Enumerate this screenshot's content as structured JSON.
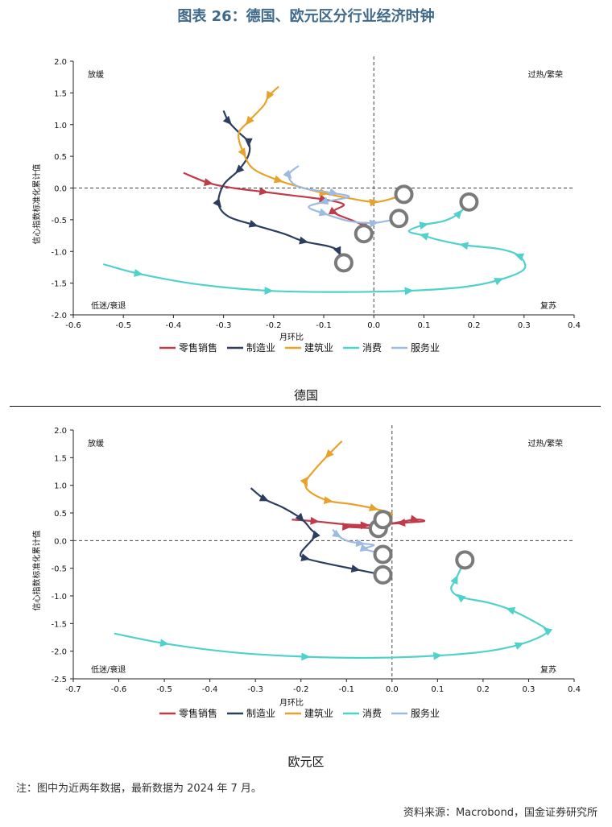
{
  "figure": {
    "title": "图表 26：德国、欧元区分行业经济时钟",
    "note": "注：图中为近两年数据，最新数据为 2024 年 7 月。",
    "source": "资料来源：Macrobond，国金证券研究所"
  },
  "quadrant_labels": {
    "top_left": "放缓",
    "top_right": "过热/繁荣",
    "bottom_left": "低迷/衰退",
    "bottom_right": "复苏"
  },
  "colors": {
    "零售销售": "#c03b4a",
    "制造业": "#2c3e5f",
    "建筑业": "#e8a22b",
    "消费": "#4fd1cc",
    "服务业": "#9dbbe0",
    "endpoint": "#7a7a7a"
  },
  "chart_data": [
    {
      "type": "scatter",
      "caption": "德国",
      "xlabel": "月环比",
      "ylabel": "信心指数标准化累计值",
      "xlim": [
        -0.6,
        0.4
      ],
      "ylim": [
        -2.0,
        2.0
      ],
      "xticks": [
        "-0.6",
        "-0.5",
        "-0.4",
        "-0.3",
        "-0.2",
        "-0.1",
        "0.0",
        "0.1",
        "0.2",
        "0.3",
        "0.4"
      ],
      "yticks": [
        "-2.0",
        "-1.5",
        "-1.0",
        "-0.5",
        "0.0",
        "0.5",
        "1.0",
        "1.5",
        "2.0"
      ],
      "grid": false,
      "legend": "bottom",
      "series": [
        {
          "name": "零售销售",
          "points": [
            [
              -0.38,
              0.24
            ],
            [
              -0.33,
              0.08
            ],
            [
              -0.28,
              0.0
            ],
            [
              -0.22,
              -0.06
            ],
            [
              -0.16,
              -0.12
            ],
            [
              -0.1,
              -0.18
            ],
            [
              -0.06,
              -0.26
            ],
            [
              -0.08,
              -0.38
            ],
            [
              -0.04,
              -0.52
            ],
            [
              -0.02,
              -0.6
            ],
            [
              -0.02,
              -0.72
            ]
          ]
        },
        {
          "name": "制造业",
          "points": [
            [
              -0.3,
              1.22
            ],
            [
              -0.29,
              1.05
            ],
            [
              -0.27,
              0.88
            ],
            [
              -0.25,
              0.72
            ],
            [
              -0.25,
              0.52
            ],
            [
              -0.27,
              0.28
            ],
            [
              -0.3,
              0.05
            ],
            [
              -0.31,
              -0.25
            ],
            [
              -0.29,
              -0.45
            ],
            [
              -0.24,
              -0.58
            ],
            [
              -0.18,
              -0.72
            ],
            [
              -0.14,
              -0.84
            ],
            [
              -0.09,
              -0.92
            ],
            [
              -0.07,
              -1.0
            ],
            [
              -0.06,
              -1.18
            ]
          ]
        },
        {
          "name": "建筑业",
          "points": [
            [
              -0.19,
              1.6
            ],
            [
              -0.21,
              1.45
            ],
            [
              -0.22,
              1.3
            ],
            [
              -0.25,
              1.05
            ],
            [
              -0.27,
              0.85
            ],
            [
              -0.26,
              0.55
            ],
            [
              -0.24,
              0.3
            ],
            [
              -0.19,
              0.12
            ],
            [
              -0.14,
              0.0
            ],
            [
              -0.1,
              -0.08
            ],
            [
              -0.05,
              -0.16
            ],
            [
              0.0,
              -0.22
            ],
            [
              0.03,
              -0.18
            ],
            [
              0.06,
              -0.1
            ]
          ]
        },
        {
          "name": "消费",
          "points": [
            [
              -0.54,
              -1.2
            ],
            [
              -0.47,
              -1.35
            ],
            [
              -0.35,
              -1.52
            ],
            [
              -0.21,
              -1.62
            ],
            [
              -0.07,
              -1.64
            ],
            [
              0.07,
              -1.62
            ],
            [
              0.18,
              -1.56
            ],
            [
              0.25,
              -1.45
            ],
            [
              0.3,
              -1.28
            ],
            [
              0.29,
              -1.07
            ],
            [
              0.25,
              -0.96
            ],
            [
              0.18,
              -0.9
            ],
            [
              0.13,
              -0.82
            ],
            [
              0.1,
              -0.75
            ],
            [
              0.07,
              -0.68
            ],
            [
              0.1,
              -0.58
            ],
            [
              0.14,
              -0.52
            ],
            [
              0.17,
              -0.4
            ],
            [
              0.19,
              -0.22
            ]
          ]
        },
        {
          "name": "服务业",
          "points": [
            [
              -0.15,
              0.35
            ],
            [
              -0.17,
              0.2
            ],
            [
              -0.15,
              0.02
            ],
            [
              -0.08,
              -0.08
            ],
            [
              -0.05,
              -0.14
            ],
            [
              -0.1,
              -0.22
            ],
            [
              -0.13,
              -0.3
            ],
            [
              -0.1,
              -0.4
            ],
            [
              -0.05,
              -0.52
            ],
            [
              0.0,
              -0.55
            ],
            [
              0.05,
              -0.48
            ]
          ]
        }
      ]
    },
    {
      "type": "scatter",
      "caption": "欧元区",
      "xlabel": "月环比",
      "ylabel": "信心指数标准化累计值",
      "xlim": [
        -0.7,
        0.4
      ],
      "ylim": [
        -2.5,
        2.0
      ],
      "xticks": [
        "-0.7",
        "-0.6",
        "-0.5",
        "-0.4",
        "-0.3",
        "-0.2",
        "-0.1",
        "0.0",
        "0.1",
        "0.2",
        "0.3",
        "0.4"
      ],
      "yticks": [
        "-2.5",
        "-2.0",
        "-1.5",
        "-1.0",
        "-0.5",
        "0.0",
        "0.5",
        "1.0",
        "1.5",
        "2.0"
      ],
      "grid": false,
      "legend": "bottom",
      "series": [
        {
          "name": "零售销售",
          "points": [
            [
              -0.22,
              0.38
            ],
            [
              -0.17,
              0.35
            ],
            [
              -0.11,
              0.3
            ],
            [
              -0.06,
              0.28
            ],
            [
              -0.01,
              0.3
            ],
            [
              0.05,
              0.38
            ],
            [
              0.07,
              0.35
            ],
            [
              0.02,
              0.32
            ],
            [
              -0.04,
              0.28
            ],
            [
              -0.1,
              0.25
            ],
            [
              -0.03,
              0.22
            ]
          ]
        },
        {
          "name": "制造业",
          "points": [
            [
              -0.31,
              0.95
            ],
            [
              -0.28,
              0.75
            ],
            [
              -0.24,
              0.6
            ],
            [
              -0.2,
              0.4
            ],
            [
              -0.18,
              0.22
            ],
            [
              -0.17,
              0.08
            ],
            [
              -0.2,
              -0.22
            ],
            [
              -0.19,
              -0.32
            ],
            [
              -0.14,
              -0.42
            ],
            [
              -0.08,
              -0.52
            ],
            [
              -0.02,
              -0.62
            ]
          ]
        },
        {
          "name": "建筑业",
          "points": [
            [
              -0.11,
              1.8
            ],
            [
              -0.14,
              1.55
            ],
            [
              -0.17,
              1.28
            ],
            [
              -0.19,
              1.05
            ],
            [
              -0.18,
              0.88
            ],
            [
              -0.14,
              0.72
            ],
            [
              -0.09,
              0.66
            ],
            [
              -0.04,
              0.58
            ],
            [
              0.0,
              0.48
            ],
            [
              -0.02,
              0.38
            ]
          ]
        },
        {
          "name": "消费",
          "points": [
            [
              -0.61,
              -1.68
            ],
            [
              -0.5,
              -1.86
            ],
            [
              -0.35,
              -2.02
            ],
            [
              -0.19,
              -2.1
            ],
            [
              -0.04,
              -2.12
            ],
            [
              0.1,
              -2.08
            ],
            [
              0.21,
              -2.0
            ],
            [
              0.28,
              -1.88
            ],
            [
              0.33,
              -1.72
            ],
            [
              0.34,
              -1.62
            ],
            [
              0.32,
              -1.5
            ],
            [
              0.26,
              -1.25
            ],
            [
              0.21,
              -1.12
            ],
            [
              0.15,
              -1.02
            ],
            [
              0.13,
              -0.88
            ],
            [
              0.14,
              -0.7
            ],
            [
              0.16,
              -0.35
            ]
          ]
        },
        {
          "name": "服务业",
          "points": [
            [
              -0.13,
              0.2
            ],
            [
              -0.12,
              0.1
            ],
            [
              -0.1,
              0.0
            ],
            [
              -0.07,
              -0.05
            ],
            [
              -0.04,
              -0.08
            ],
            [
              -0.06,
              -0.15
            ],
            [
              -0.03,
              -0.22
            ],
            [
              -0.02,
              -0.25
            ]
          ]
        }
      ]
    }
  ]
}
